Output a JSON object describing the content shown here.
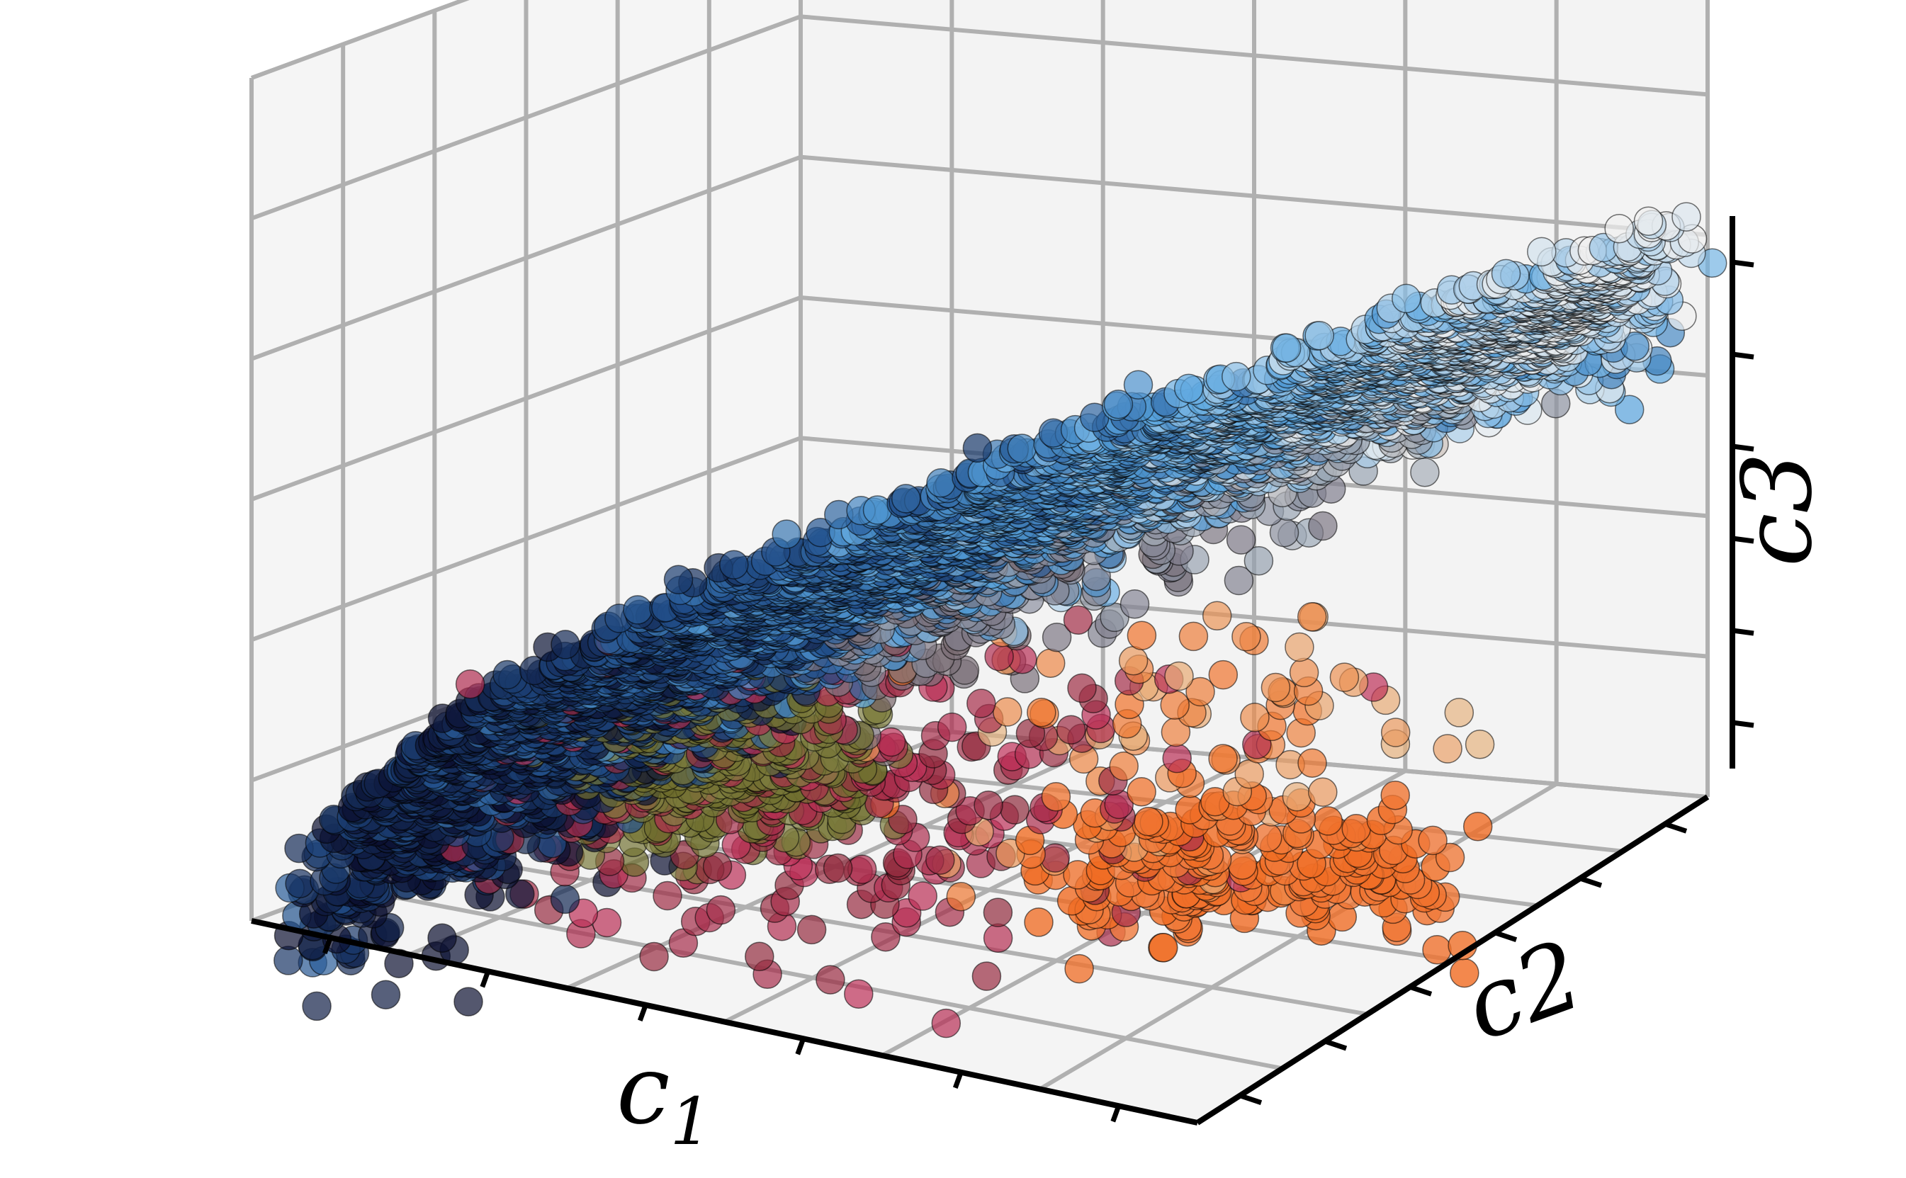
{
  "chart_data": {
    "type": "scatter",
    "projection": "3d",
    "title": "",
    "axes": {
      "x": {
        "label": "c",
        "label_subscript": "1",
        "tick_labels": []
      },
      "y": {
        "label": "c",
        "label_subscript": "2",
        "tick_labels": []
      },
      "z": {
        "label": "c",
        "label_subscript": "3",
        "tick_labels": []
      }
    },
    "grid": true,
    "pane_color": "#f2f2f2",
    "gridline_color": "#b0b0b0",
    "marker_edge_color": "#000000",
    "point_count_estimate": 6000,
    "clusters": [
      {
        "name": "main-manifold",
        "color_gradient": [
          "#0b1030",
          "#22508c",
          "#5aa6e0",
          "#f0f0f0"
        ]
      },
      {
        "name": "olive-cluster",
        "color": "#6b6a2a"
      },
      {
        "name": "crimson-scatter",
        "color": "#c0305a"
      },
      {
        "name": "orange-cluster",
        "color": "#f06a20"
      }
    ]
  }
}
